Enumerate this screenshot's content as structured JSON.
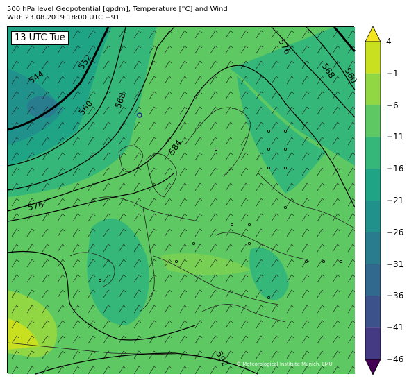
{
  "title": {
    "line1": "500 hPa level Geopotential [gpdm], Temperature [°C] and Wind",
    "line2": "WRF 23.08.2019 18:00 UTC +91"
  },
  "time_label": "13 UTC Tue",
  "credit": "© Meteorological Institute Munich, LMU",
  "colorbar": {
    "levels": [
      "4",
      "−1",
      "−6",
      "−11",
      "−16",
      "−21",
      "−26",
      "−31",
      "−36",
      "−41",
      "−46"
    ],
    "colors": [
      "#f4e61e",
      "#c8e020",
      "#90d743",
      "#5ec962",
      "#35b779",
      "#20a486",
      "#21918c",
      "#287c8e",
      "#31688e",
      "#3b528b",
      "#443983",
      "#482475",
      "#440154"
    ]
  },
  "contour_labels": [
    "544",
    "552",
    "560",
    "568",
    "576",
    "584",
    "592",
    "576",
    "568",
    "560"
  ]
}
